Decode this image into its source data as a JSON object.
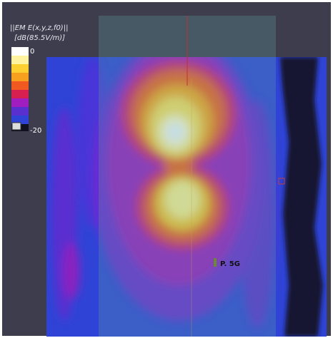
{
  "legend": {
    "title": "||EM E(x,y,z,f0)||",
    "unit": "[dB(85.5V/m)]",
    "max_label": "0",
    "min_label": "-20"
  },
  "annotations": [
    "P. 5G"
  ]
}
